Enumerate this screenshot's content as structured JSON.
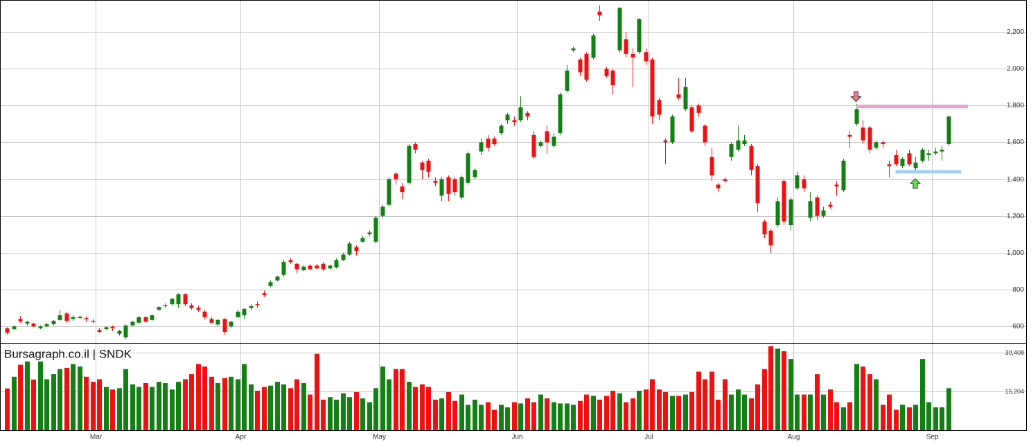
{
  "chart_data": {
    "type": "candlestick",
    "title": "Bursagraph.co.il | SNDK",
    "categories": [
      null,
      null,
      null,
      null,
      null,
      null,
      null,
      null,
      null,
      null,
      null,
      null,
      null,
      null,
      "Mar",
      null,
      null,
      null,
      null,
      null,
      null,
      null,
      null,
      null,
      null,
      null,
      null,
      null,
      null,
      null,
      null,
      null,
      null,
      null,
      null,
      null,
      "Apr",
      null,
      null,
      null,
      null,
      null,
      null,
      null,
      null,
      null,
      null,
      null,
      null,
      null,
      null,
      null,
      null,
      null,
      null,
      null,
      null,
      "May",
      null,
      null,
      null,
      null,
      null,
      null,
      null,
      null,
      null,
      null,
      null,
      null,
      null,
      null,
      null,
      null,
      null,
      null,
      null,
      null,
      "Jun",
      null,
      null,
      null,
      null,
      null,
      null,
      null,
      null,
      null,
      null,
      null,
      null,
      null,
      null,
      null,
      null,
      null,
      null,
      null,
      "Jul",
      null,
      null,
      null,
      null,
      null,
      null,
      null,
      null,
      null,
      null,
      null,
      null,
      null,
      null,
      null,
      null,
      null,
      null,
      null,
      null,
      null,
      "Aug",
      null,
      null,
      null,
      null,
      null,
      null,
      null,
      null,
      null,
      null,
      null,
      null,
      null,
      null,
      null,
      null,
      null,
      null,
      null,
      null,
      "Sep",
      null,
      null
    ],
    "open": [
      590,
      585,
      640,
      615,
      615,
      590,
      600,
      612,
      635,
      670,
      640,
      645,
      645,
      630,
      580,
      585,
      598,
      560,
      540,
      605,
      620,
      650,
      635,
      690,
      710,
      720,
      720,
      775,
      715,
      700,
      680,
      640,
      610,
      640,
      600,
      650,
      660,
      700,
      720,
      780,
      820,
      850,
      880,
      960,
      940,
      905,
      930,
      930,
      940,
      915,
      920,
      960,
      990,
      1030,
      1060,
      1100,
      1060,
      1200,
      1260,
      1430,
      1360,
      1380,
      1590,
      1490,
      1500,
      1390,
      1310,
      1410,
      1400,
      1300,
      1380,
      1410,
      1550,
      1620,
      1620,
      1650,
      1720,
      1720,
      1720,
      1760,
      1640,
      1580,
      1660,
      1580,
      1650,
      1880,
      2100,
      2050,
      2080,
      2060,
      2310,
      2000,
      1990,
      2100,
      2160,
      2080,
      2090,
      2090,
      2050,
      1830,
      1610,
      1600,
      1860,
      1780,
      1790,
      1800,
      1690,
      1520,
      1370,
      1400,
      1520,
      1560,
      1590,
      1580,
      1470,
      1170,
      1120,
      1150,
      1390,
      1150,
      1350,
      1400,
      1190,
      1300,
      1200,
      1260,
      1370,
      1340,
      1640,
      1700,
      1680,
      1680,
      1570,
      1600,
      1480,
      1530,
      1470,
      1540,
      1460,
      1500,
      1530,
      1540,
      1550,
      1590
    ],
    "high": [
      595,
      605,
      655,
      630,
      620,
      605,
      620,
      635,
      690,
      680,
      660,
      660,
      655,
      640,
      590,
      600,
      605,
      580,
      610,
      630,
      655,
      655,
      665,
      710,
      725,
      755,
      780,
      780,
      725,
      710,
      690,
      650,
      640,
      645,
      630,
      690,
      700,
      720,
      735,
      795,
      850,
      875,
      960,
      970,
      945,
      930,
      940,
      940,
      950,
      935,
      970,
      1000,
      1060,
      1040,
      1090,
      1120,
      1200,
      1260,
      1410,
      1440,
      1380,
      1590,
      1600,
      1500,
      1510,
      1410,
      1410,
      1420,
      1410,
      1420,
      1550,
      1460,
      1620,
      1640,
      1630,
      1700,
      1760,
      1740,
      1850,
      1770,
      1660,
      1610,
      1690,
      1650,
      1870,
      2020,
      2120,
      2060,
      2090,
      2190,
      2345,
      2010,
      2000,
      2335,
      2200,
      2110,
      2275,
      2110,
      2060,
      1840,
      1620,
      1750,
      1950,
      1950,
      1800,
      1810,
      1700,
      1570,
      1380,
      1410,
      1600,
      1690,
      1640,
      1590,
      1480,
      1180,
      1130,
      1300,
      1400,
      1300,
      1440,
      1420,
      1330,
      1310,
      1250,
      1275,
      1390,
      1510,
      1660,
      1810,
      1720,
      1690,
      1610,
      1610,
      1500,
      1560,
      1520,
      1560,
      1520,
      1570,
      1560,
      1570,
      1580,
      1745
    ],
    "low": [
      555,
      580,
      620,
      605,
      595,
      585,
      595,
      605,
      630,
      620,
      630,
      640,
      625,
      615,
      565,
      580,
      575,
      550,
      530,
      600,
      615,
      620,
      630,
      685,
      700,
      715,
      700,
      710,
      690,
      680,
      640,
      615,
      600,
      555,
      590,
      645,
      640,
      690,
      700,
      760,
      815,
      845,
      870,
      940,
      890,
      900,
      905,
      905,
      900,
      905,
      915,
      955,
      985,
      985,
      1055,
      1090,
      1050,
      1190,
      1250,
      1370,
      1290,
      1370,
      1540,
      1400,
      1410,
      1360,
      1280,
      1280,
      1310,
      1290,
      1370,
      1400,
      1530,
      1550,
      1580,
      1640,
      1700,
      1690,
      1710,
      1720,
      1510,
      1570,
      1540,
      1570,
      1640,
      1870,
      2090,
      1960,
      1930,
      2050,
      2260,
      1950,
      1860,
      2090,
      2060,
      1900,
      2080,
      2020,
      1700,
      1720,
      1480,
      1590,
      1830,
      1770,
      1650,
      1740,
      1580,
      1390,
      1330,
      1380,
      1500,
      1550,
      1580,
      1420,
      1220,
      1080,
      1000,
      1140,
      1150,
      1120,
      1340,
      1330,
      1170,
      1180,
      1190,
      1240,
      1310,
      1330,
      1570,
      1690,
      1590,
      1540,
      1560,
      1570,
      1410,
      1470,
      1460,
      1470,
      1440,
      1490,
      1500,
      1530,
      1500,
      1580
    ],
    "close": [
      565,
      600,
      628,
      625,
      600,
      600,
      612,
      630,
      660,
      630,
      650,
      652,
      642,
      625,
      570,
      595,
      590,
      575,
      605,
      625,
      650,
      625,
      660,
      705,
      715,
      750,
      775,
      720,
      700,
      690,
      650,
      620,
      635,
      570,
      625,
      680,
      695,
      710,
      718,
      770,
      840,
      870,
      950,
      950,
      910,
      925,
      910,
      915,
      910,
      930,
      960,
      990,
      1050,
      1010,
      1080,
      1110,
      1190,
      1250,
      1400,
      1400,
      1330,
      1580,
      1560,
      1450,
      1440,
      1380,
      1400,
      1320,
      1330,
      1410,
      1540,
      1450,
      1600,
      1570,
      1590,
      1690,
      1750,
      1710,
      1790,
      1740,
      1520,
      1600,
      1600,
      1630,
      1860,
      1990,
      2110,
      1980,
      1940,
      2180,
      2290,
      1960,
      1910,
      2330,
      2080,
      2060,
      2270,
      2040,
      1740,
      1750,
      1600,
      1740,
      1840,
      1900,
      1660,
      1760,
      1600,
      1420,
      1350,
      1390,
      1590,
      1610,
      1610,
      1450,
      1270,
      1100,
      1040,
      1280,
      1170,
      1290,
      1420,
      1350,
      1280,
      1200,
      1230,
      1250,
      1360,
      1500,
      1630,
      1780,
      1610,
      1560,
      1600,
      1590,
      1470,
      1480,
      1510,
      1480,
      1490,
      1560,
      1540,
      1550,
      1560,
      1740
    ],
    "up_color": "#138013",
    "down_color": "#f01010",
    "ylim": [
      510,
      2373
    ],
    "yticks": [
      600,
      800,
      {
        "value": 1000,
        "label": "1,000"
      },
      {
        "value": 1200,
        "label": "1,200"
      },
      {
        "value": 1400,
        "label": "1,400"
      },
      {
        "value": 1600,
        "label": "1,600"
      },
      {
        "value": 1800,
        "label": "1,800"
      },
      {
        "value": 2000,
        "label": "2,000"
      },
      {
        "value": 2200,
        "label": "2,200"
      }
    ],
    "grid": true,
    "volume": {
      "values": [
        16400,
        21000,
        25700,
        27000,
        19900,
        27000,
        20000,
        22000,
        24000,
        24500,
        26000,
        25000,
        21000,
        19000,
        20000,
        17000,
        16000,
        16500,
        24000,
        18000,
        17000,
        18500,
        17000,
        19000,
        18500,
        16000,
        19000,
        20000,
        22000,
        26000,
        25000,
        21000,
        18500,
        20500,
        21000,
        20000,
        26000,
        18000,
        15500,
        17000,
        17500,
        19000,
        18000,
        16500,
        20000,
        18500,
        14000,
        30000,
        12000,
        13000,
        12000,
        14500,
        13000,
        15000,
        12500,
        11000,
        16500,
        25000,
        20000,
        24000,
        24000,
        19000,
        17000,
        18000,
        17000,
        12000,
        12500,
        15000,
        11500,
        14000,
        10000,
        12000,
        10000,
        11000,
        8000,
        10000,
        9000,
        11000,
        10500,
        12500,
        11000,
        14000,
        12500,
        11000,
        10500,
        10500,
        10000,
        11500,
        14000,
        13500,
        12000,
        13500,
        15500,
        14500,
        11000,
        12500,
        15500,
        16000,
        20000,
        16000,
        15000,
        13500,
        13500,
        14000,
        15000,
        23000,
        20000,
        23000,
        12000,
        20000,
        14000,
        16000,
        14000,
        12500,
        18000,
        24000,
        33000,
        32000,
        31000,
        28000,
        14000,
        14000,
        14000,
        22000,
        14000,
        16000,
        11000,
        9000,
        11000,
        26000,
        25000,
        22000,
        20000,
        10000,
        14000,
        8000,
        10000,
        9000,
        10000,
        28000,
        11000,
        9000,
        9000,
        16500
      ],
      "ylim": [
        0,
        34000
      ],
      "yticks": [
        {
          "value": 15204,
          "label": "15,204"
        },
        {
          "value": 30408,
          "label": "30,408"
        }
      ]
    },
    "hlines": [
      {
        "value": 1795,
        "x": [
          129,
          146
        ],
        "color": "#e8a4cc"
      },
      {
        "value": 1440,
        "x": [
          135,
          145
        ],
        "color": "#a4cff2"
      }
    ],
    "markers": [
      {
        "x": 129,
        "direction": "down",
        "color": "#f07888"
      },
      {
        "x": 138,
        "direction": "up",
        "color": "#66dd55"
      }
    ]
  }
}
